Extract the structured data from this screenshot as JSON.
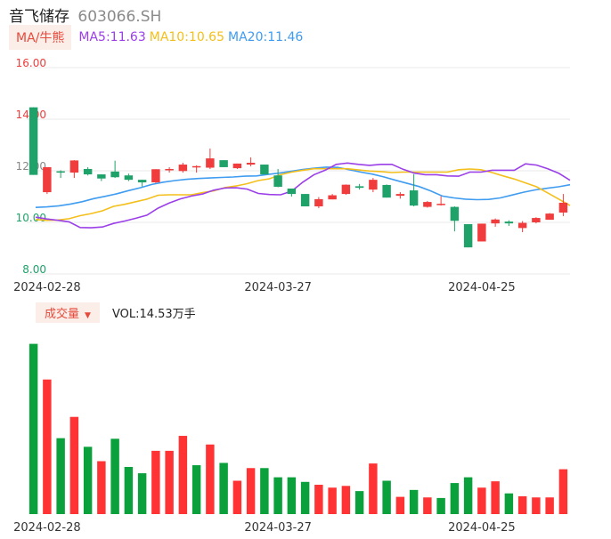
{
  "header": {
    "name": "音飞储存",
    "code": "603066.SH"
  },
  "ma_legend": {
    "tag": "MA/牛熊",
    "ma5": "MA5:11.63",
    "ma10": "MA10:10.65",
    "ma20": "MA20:11.46",
    "colors": {
      "ma5": "#9b3fe8",
      "ma10": "#f4bf1a",
      "ma20": "#3f9cf0"
    }
  },
  "volume_legend": {
    "tag": "成交量",
    "caret": "▼",
    "text": "VOL:14.53万手"
  },
  "colors": {
    "up": "#f03c3c",
    "down": "#1fa26a",
    "vol_up": "#ff3333",
    "vol_down": "#0aa13c",
    "grid": "#e8e8e8"
  },
  "chart_data": [
    {
      "type": "candlestick",
      "title": "",
      "y_tick_labels": [
        "16.00",
        "14.00",
        "12.00",
        "10.00",
        "8.00"
      ],
      "ylim": [
        8,
        16
      ],
      "x_tick_labels": [
        "2024-02-28",
        "2024-03-27",
        "2024-04-25"
      ],
      "grid": true,
      "candles": [
        {
          "o": 14.46,
          "h": 14.46,
          "l": 11.84,
          "c": 11.84
        },
        {
          "o": 11.17,
          "h": 12.14,
          "l": 11.1,
          "c": 12.14
        },
        {
          "o": 11.98,
          "h": 12.02,
          "l": 11.72,
          "c": 11.93
        },
        {
          "o": 11.93,
          "h": 12.41,
          "l": 11.72,
          "c": 12.4
        },
        {
          "o": 12.07,
          "h": 12.14,
          "l": 11.82,
          "c": 11.86
        },
        {
          "o": 11.86,
          "h": 11.86,
          "l": 11.6,
          "c": 11.7
        },
        {
          "o": 11.97,
          "h": 12.39,
          "l": 11.72,
          "c": 11.75
        },
        {
          "o": 11.82,
          "h": 11.89,
          "l": 11.6,
          "c": 11.65
        },
        {
          "o": 11.65,
          "h": 11.65,
          "l": 11.39,
          "c": 11.55
        },
        {
          "o": 11.55,
          "h": 12.06,
          "l": 11.53,
          "c": 12.06
        },
        {
          "o": 12.07,
          "h": 12.14,
          "l": 11.93,
          "c": 12.07
        },
        {
          "o": 11.99,
          "h": 12.31,
          "l": 11.93,
          "c": 12.24
        },
        {
          "o": 12.18,
          "h": 12.21,
          "l": 11.93,
          "c": 12.18
        },
        {
          "o": 12.12,
          "h": 12.86,
          "l": 12.07,
          "c": 12.48
        },
        {
          "o": 12.41,
          "h": 12.41,
          "l": 12.14,
          "c": 12.14
        },
        {
          "o": 12.1,
          "h": 12.28,
          "l": 12.07,
          "c": 12.28
        },
        {
          "o": 12.24,
          "h": 12.52,
          "l": 12.17,
          "c": 12.31
        },
        {
          "o": 12.24,
          "h": 12.24,
          "l": 11.86,
          "c": 11.86
        },
        {
          "o": 11.82,
          "h": 12.07,
          "l": 11.36,
          "c": 11.38
        },
        {
          "o": 11.31,
          "h": 11.31,
          "l": 11.0,
          "c": 11.1
        },
        {
          "o": 11.1,
          "h": 11.1,
          "l": 10.62,
          "c": 10.62
        },
        {
          "o": 10.62,
          "h": 10.98,
          "l": 10.55,
          "c": 10.9
        },
        {
          "o": 10.89,
          "h": 11.1,
          "l": 10.89,
          "c": 11.05
        },
        {
          "o": 11.1,
          "h": 11.47,
          "l": 11.07,
          "c": 11.46
        },
        {
          "o": 11.4,
          "h": 11.49,
          "l": 11.27,
          "c": 11.34
        },
        {
          "o": 11.27,
          "h": 11.72,
          "l": 11.17,
          "c": 11.65
        },
        {
          "o": 11.45,
          "h": 11.47,
          "l": 10.96,
          "c": 10.96
        },
        {
          "o": 11.03,
          "h": 11.17,
          "l": 10.92,
          "c": 11.1
        },
        {
          "o": 11.24,
          "h": 11.87,
          "l": 10.62,
          "c": 10.65
        },
        {
          "o": 10.6,
          "h": 10.83,
          "l": 10.57,
          "c": 10.79
        },
        {
          "o": 10.72,
          "h": 11.01,
          "l": 10.65,
          "c": 10.72
        },
        {
          "o": 10.6,
          "h": 10.62,
          "l": 9.65,
          "c": 10.06
        },
        {
          "o": 9.93,
          "h": 9.93,
          "l": 9.03,
          "c": 9.03
        },
        {
          "o": 9.26,
          "h": 9.95,
          "l": 9.26,
          "c": 9.95
        },
        {
          "o": 9.96,
          "h": 10.15,
          "l": 9.83,
          "c": 10.11
        },
        {
          "o": 10.03,
          "h": 10.08,
          "l": 9.86,
          "c": 9.96
        },
        {
          "o": 9.78,
          "h": 10.05,
          "l": 9.62,
          "c": 9.98
        },
        {
          "o": 10.0,
          "h": 10.2,
          "l": 9.96,
          "c": 10.17
        },
        {
          "o": 10.1,
          "h": 10.36,
          "l": 10.1,
          "c": 10.34
        },
        {
          "o": 10.38,
          "h": 11.1,
          "l": 10.24,
          "c": 10.76
        }
      ],
      "ma5": [
        10.2,
        10.13,
        10.08,
        10.02,
        9.8,
        9.79,
        9.82,
        9.96,
        10.05,
        10.16,
        10.28,
        10.55,
        10.75,
        10.91,
        11.02,
        11.1,
        11.25,
        11.33,
        11.34,
        11.29,
        11.12,
        11.08,
        11.07,
        11.21,
        11.56,
        11.85,
        12.02,
        12.25,
        12.3,
        12.25,
        12.21,
        12.25,
        12.25,
        12.06,
        11.91,
        11.85,
        11.85,
        11.8,
        11.79,
        11.95,
        11.95,
        12.02,
        12.02,
        12.02,
        12.27,
        12.22,
        12.08,
        11.9,
        11.63
      ],
      "ma10": [
        10.11,
        10.08,
        10.09,
        10.14,
        10.26,
        10.34,
        10.45,
        10.62,
        10.7,
        10.8,
        10.9,
        11.05,
        11.07,
        11.07,
        11.07,
        11.15,
        11.22,
        11.35,
        11.41,
        11.5,
        11.62,
        11.69,
        11.85,
        11.95,
        12.02,
        12.08,
        12.08,
        12.08,
        12.08,
        12.03,
        11.99,
        11.97,
        11.93,
        11.95,
        11.95,
        11.95,
        11.95,
        11.95,
        12.04,
        12.07,
        12.04,
        11.93,
        11.8,
        11.68,
        11.53,
        11.38,
        11.14,
        10.9,
        10.65
      ],
      "ma20": [
        10.58,
        10.6,
        10.64,
        10.71,
        10.8,
        10.92,
        11.01,
        11.11,
        11.23,
        11.34,
        11.47,
        11.56,
        11.62,
        11.67,
        11.7,
        11.72,
        11.74,
        11.76,
        11.79,
        11.8,
        11.86,
        11.91,
        11.98,
        12.05,
        12.1,
        12.14,
        12.13,
        12.04,
        11.95,
        11.87,
        11.76,
        11.63,
        11.51,
        11.39,
        11.22,
        11.02,
        10.95,
        10.9,
        10.88,
        10.89,
        10.95,
        11.06,
        11.17,
        11.26,
        11.32,
        11.38,
        11.46
      ]
    },
    {
      "type": "bar",
      "title": "",
      "ylim": [
        0,
        30
      ],
      "values": [
        29.6,
        23.4,
        13.2,
        16.9,
        11.7,
        9.2,
        13.1,
        8.2,
        7.1,
        11.0,
        11.0,
        13.6,
        8.5,
        12.1,
        8.9,
        5.8,
        8.0,
        8.0,
        6.4,
        6.4,
        5.6,
        5.1,
        4.6,
        4.9,
        4.0,
        8.8,
        5.8,
        3.0,
        4.2,
        2.9,
        2.8,
        5.4,
        6.4,
        4.6,
        5.7,
        3.6,
        3.1,
        2.9,
        2.9,
        7.8
      ],
      "up": [
        false,
        true,
        false,
        true,
        false,
        true,
        false,
        false,
        false,
        true,
        true,
        true,
        false,
        true,
        false,
        true,
        true,
        false,
        false,
        false,
        false,
        true,
        true,
        true,
        false,
        true,
        false,
        true,
        false,
        true,
        false,
        false,
        false,
        true,
        true,
        false,
        true,
        true,
        true,
        true
      ],
      "x_tick_labels": [
        "2024-02-28",
        "2024-03-27",
        "2024-04-25"
      ]
    }
  ]
}
